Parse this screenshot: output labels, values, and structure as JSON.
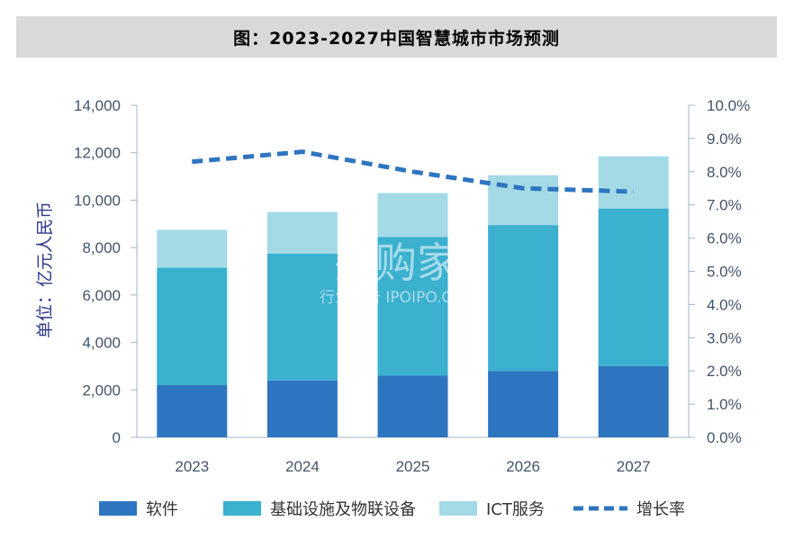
{
  "title": "图：2023-2027中国智慧城市市场预测",
  "watermark": {
    "brand": "并购家",
    "sub": "行业报告 IPOIPO.CN"
  },
  "chart_data": {
    "type": "bar",
    "stacked": true,
    "categories": [
      "2023",
      "2024",
      "2025",
      "2026",
      "2027"
    ],
    "ylabel": "单位：亿元人民币",
    "ylim": [
      0,
      14000
    ],
    "yticks": [
      "0",
      "2,000",
      "4,000",
      "6,000",
      "8,000",
      "10,000",
      "12,000",
      "14,000"
    ],
    "y2lim": [
      0,
      10
    ],
    "y2ticks": [
      "0.0%",
      "1.0%",
      "2.0%",
      "3.0%",
      "4.0%",
      "5.0%",
      "6.0%",
      "7.0%",
      "8.0%",
      "9.0%",
      "10.0%"
    ],
    "series": [
      {
        "name": "软件",
        "color": "#2e75c0",
        "values": [
          2200,
          2400,
          2600,
          2800,
          3000
        ]
      },
      {
        "name": "基础设施及物联设备",
        "color": "#3bb0cf",
        "values": [
          4950,
          5350,
          5850,
          6150,
          6650
        ]
      },
      {
        "name": "ICT服务",
        "color": "#a3dae6",
        "values": [
          1600,
          1750,
          1850,
          2100,
          2200
        ]
      },
      {
        "name": "增长率",
        "type": "line",
        "dashed": true,
        "axis": "right",
        "color": "#2e75c0",
        "values": [
          8.3,
          8.6,
          8.0,
          7.5,
          7.4
        ]
      }
    ],
    "grid": false,
    "legend": "bottom"
  }
}
